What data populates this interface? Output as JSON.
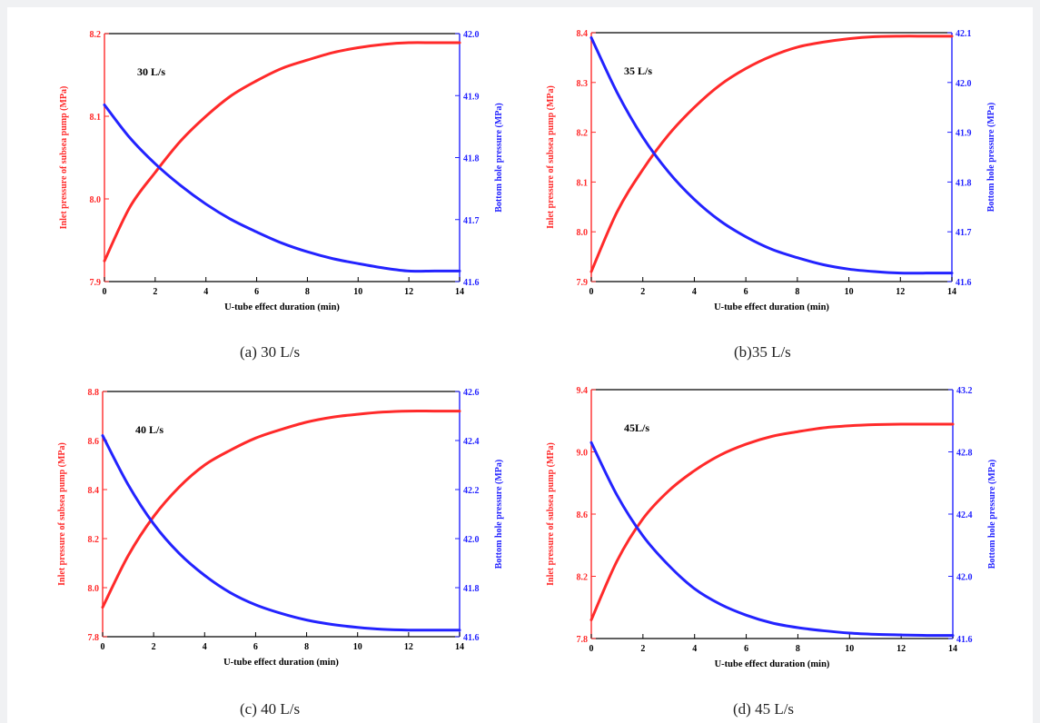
{
  "colors": {
    "left_series": "#ff2a2a",
    "right_series": "#2323ff",
    "axis": "#000000"
  },
  "chart_data": [
    {
      "type": "line",
      "panel": "a",
      "caption": "(a) 30 L/s",
      "annotation": "30 L/s",
      "xlabel": "U-tube effect duration (min)",
      "ylabel_left": "Inlet pressure of subsea pump (MPa)",
      "ylabel_right": "Bottom hole pressure (MPa)",
      "xlim": [
        0,
        14
      ],
      "ylim_left": [
        7.9,
        8.2
      ],
      "ylim_right": [
        41.6,
        42.0
      ],
      "x_ticks": [
        "0",
        "2",
        "4",
        "6",
        "8",
        "10",
        "12",
        "14"
      ],
      "y_ticks_left": [
        "7.9",
        "8.0",
        "8.1",
        "8.2"
      ],
      "y_ticks_right": [
        "41.6",
        "41.7",
        "41.8",
        "41.9",
        "42.0"
      ],
      "x": [
        0,
        1,
        2,
        3,
        4,
        5,
        6,
        7,
        8,
        9,
        10,
        11,
        12,
        13,
        14
      ],
      "series": [
        {
          "axis": "left",
          "color": "#ff2a2a",
          "values": [
            7.925,
            7.99,
            8.032,
            8.07,
            8.1,
            8.125,
            8.143,
            8.158,
            8.168,
            8.177,
            8.183,
            8.187,
            8.189,
            8.189,
            8.189
          ]
        },
        {
          "axis": "right",
          "color": "#2323ff",
          "values": [
            41.885,
            41.832,
            41.79,
            41.755,
            41.725,
            41.7,
            41.68,
            41.662,
            41.648,
            41.637,
            41.629,
            41.622,
            41.617,
            41.617,
            41.617
          ]
        }
      ]
    },
    {
      "type": "line",
      "panel": "b",
      "caption": "(b)35 L/s",
      "annotation": "35 L/s",
      "xlabel": "U-tube effect duration (min)",
      "ylabel_left": "Inlet pressure of subsea pump (MPa)",
      "ylabel_right": "Bottom hole pressure (MPa)",
      "xlim": [
        0,
        14
      ],
      "ylim_left": [
        7.9,
        8.4
      ],
      "ylim_right": [
        41.6,
        42.1
      ],
      "x_ticks": [
        "0",
        "2",
        "4",
        "6",
        "8",
        "10",
        "12",
        "14"
      ],
      "y_ticks_left": [
        "7.9",
        "8.0",
        "8.1",
        "8.2",
        "8.3",
        "8.4"
      ],
      "y_ticks_right": [
        "41.6",
        "41.7",
        "41.8",
        "41.9",
        "42.0",
        "42.1"
      ],
      "x": [
        0,
        1,
        2,
        3,
        4,
        5,
        6,
        7,
        8,
        9,
        10,
        11,
        12,
        13,
        14
      ],
      "series": [
        {
          "axis": "left",
          "color": "#ff2a2a",
          "values": [
            7.92,
            8.04,
            8.125,
            8.195,
            8.25,
            8.295,
            8.328,
            8.353,
            8.371,
            8.381,
            8.388,
            8.392,
            8.393,
            8.393,
            8.393
          ]
        },
        {
          "axis": "right",
          "color": "#2323ff",
          "values": [
            42.09,
            41.98,
            41.89,
            41.82,
            41.765,
            41.722,
            41.69,
            41.665,
            41.648,
            41.634,
            41.625,
            41.62,
            41.617,
            41.617,
            41.617
          ]
        }
      ]
    },
    {
      "type": "line",
      "panel": "c",
      "caption": "(c) 40 L/s",
      "annotation": "40 L/s",
      "xlabel": "U-tube effect duration (min)",
      "ylabel_left": "Inlet pressure of subsea pump (MPa)",
      "ylabel_right": "Bottom hole pressure (MPa)",
      "xlim": [
        0,
        14
      ],
      "ylim_left": [
        7.8,
        8.8
      ],
      "ylim_right": [
        41.6,
        42.6
      ],
      "x_ticks": [
        "0",
        "2",
        "4",
        "6",
        "8",
        "10",
        "12",
        "14"
      ],
      "y_ticks_left": [
        "7.8",
        "8.0",
        "8.2",
        "8.4",
        "8.6",
        "8.8"
      ],
      "y_ticks_right": [
        "41.6",
        "41.8",
        "42.0",
        "42.2",
        "42.4",
        "42.6"
      ],
      "x": [
        0,
        1,
        2,
        3,
        4,
        5,
        6,
        7,
        8,
        9,
        10,
        11,
        12,
        13,
        14
      ],
      "series": [
        {
          "axis": "left",
          "color": "#ff2a2a",
          "values": [
            7.92,
            8.13,
            8.29,
            8.41,
            8.5,
            8.56,
            8.61,
            8.645,
            8.675,
            8.695,
            8.707,
            8.716,
            8.72,
            8.72,
            8.72
          ]
        },
        {
          "axis": "right",
          "color": "#2323ff",
          "values": [
            42.42,
            42.22,
            42.06,
            41.94,
            41.85,
            41.78,
            41.73,
            41.695,
            41.668,
            41.65,
            41.638,
            41.63,
            41.627,
            41.627,
            41.627
          ]
        }
      ]
    },
    {
      "type": "line",
      "panel": "d",
      "caption": "(d) 45 L/s",
      "annotation": "45L/s",
      "xlabel": "U-tube effect duration (min)",
      "ylabel_left": "Inlet pressure of subsea pump (MPa)",
      "ylabel_right": "Bottom hole pressure (MPa)",
      "xlim": [
        0,
        14
      ],
      "ylim_left": [
        7.8,
        9.4
      ],
      "ylim_right": [
        41.6,
        43.2
      ],
      "x_ticks": [
        "0",
        "2",
        "4",
        "6",
        "8",
        "10",
        "12",
        "14"
      ],
      "y_ticks_left": [
        "7.8",
        "8.2",
        "8.6",
        "9.0",
        "9.4"
      ],
      "y_ticks_right": [
        "41.6",
        "42.0",
        "42.4",
        "42.8",
        "43.2"
      ],
      "x": [
        0,
        1,
        2,
        3,
        4,
        5,
        6,
        7,
        8,
        9,
        10,
        11,
        12,
        13,
        14
      ],
      "series": [
        {
          "axis": "left",
          "color": "#ff2a2a",
          "values": [
            7.92,
            8.3,
            8.57,
            8.75,
            8.88,
            8.98,
            9.05,
            9.1,
            9.13,
            9.155,
            9.168,
            9.175,
            9.178,
            9.178,
            9.178
          ]
        },
        {
          "axis": "right",
          "color": "#2323ff",
          "values": [
            42.86,
            42.52,
            42.26,
            42.07,
            41.92,
            41.82,
            41.75,
            41.7,
            41.67,
            41.65,
            41.635,
            41.627,
            41.623,
            41.62,
            41.62
          ]
        }
      ]
    }
  ]
}
